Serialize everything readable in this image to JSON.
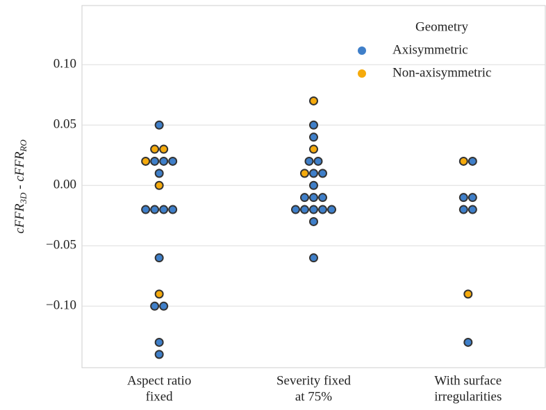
{
  "chart_data": {
    "type": "swarm",
    "categories": [
      [
        "Aspect ratio",
        "fixed"
      ],
      [
        "Severity fixed",
        "at 75%"
      ],
      [
        "With surface",
        "irregularities"
      ]
    ],
    "ylabel": [
      "cFFR",
      "3D",
      " - cFFR",
      "RO"
    ],
    "legend_title": "Geometry",
    "legend_position": "upper right",
    "grid": true,
    "ylim": [
      -0.151,
      0.149
    ],
    "yticks": [
      {
        "value": 0.1,
        "label": "0.10"
      },
      {
        "value": 0.05,
        "label": "0.05"
      },
      {
        "value": 0.0,
        "label": "0.00"
      },
      {
        "value": -0.05,
        "label": "−0.05"
      },
      {
        "value": -0.1,
        "label": "−0.10"
      }
    ],
    "series": [
      {
        "name": "Axisymmetric",
        "color": "#3f7fc9",
        "values": [
          [
            0.05,
            0.02,
            0.02,
            0.02,
            0.01,
            -0.02,
            -0.02,
            -0.02,
            -0.02,
            -0.06,
            -0.1,
            -0.1,
            -0.13,
            -0.14
          ],
          [
            0.05,
            0.04,
            0.02,
            0.02,
            0.01,
            0.01,
            0.0,
            -0.01,
            -0.01,
            -0.01,
            -0.02,
            -0.02,
            -0.02,
            -0.02,
            -0.02,
            -0.03,
            -0.06
          ],
          [
            0.02,
            -0.01,
            -0.01,
            -0.02,
            -0.02,
            -0.13
          ]
        ]
      },
      {
        "name": "Non-axisymmetric",
        "color": "#f5aa0c",
        "values": [
          [
            0.03,
            0.03,
            0.02,
            0.0,
            -0.09
          ],
          [
            0.07,
            0.03,
            0.01
          ],
          [
            0.02,
            -0.09
          ]
        ]
      }
    ]
  }
}
